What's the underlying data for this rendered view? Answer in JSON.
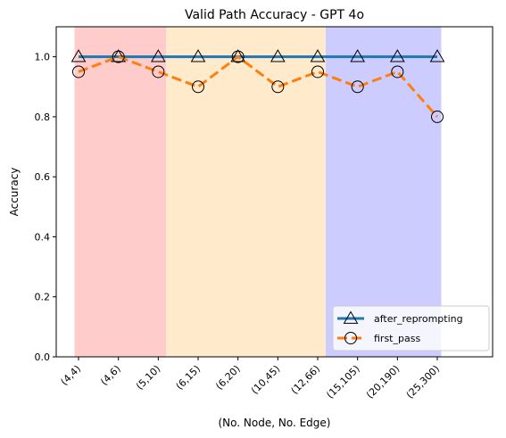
{
  "chart_data": {
    "type": "line",
    "title": "Valid Path Accuracy - GPT 4o",
    "xlabel": "(No. Node, No. Edge)",
    "ylabel": "Accuracy",
    "categories": [
      "(4,4)",
      "(4,6)",
      "(5,10)",
      "(6,15)",
      "(6,20)",
      "(10,45)",
      "(12,66)",
      "(15,105)",
      "(20,190)",
      "(25,300)"
    ],
    "ylim": [
      0,
      1.1
    ],
    "yticks": [
      "0.0",
      "0.2",
      "0.4",
      "0.6",
      "0.8",
      "1.0"
    ],
    "series": [
      {
        "name": "after_reprompting",
        "color": "#1f77b4",
        "marker": "triangle",
        "line": "solid",
        "values": [
          1.0,
          1.0,
          1.0,
          1.0,
          1.0,
          1.0,
          1.0,
          1.0,
          1.0,
          1.0
        ]
      },
      {
        "name": "first_pass",
        "color": "#ff7f0e",
        "marker": "circle",
        "line": "dashed",
        "values": [
          0.95,
          1.0,
          0.95,
          0.9,
          1.0,
          0.9,
          0.95,
          0.9,
          0.95,
          0.8
        ]
      }
    ],
    "bands": [
      {
        "from_category": 0,
        "to_category": 2,
        "color": "#ffcccc"
      },
      {
        "from_category": 2,
        "to_category": 6,
        "color": "#ffebcc"
      },
      {
        "from_category": 6,
        "to_category": 9,
        "color": "#ccccff"
      }
    ],
    "grid": false,
    "legend_position": "lower-right"
  }
}
